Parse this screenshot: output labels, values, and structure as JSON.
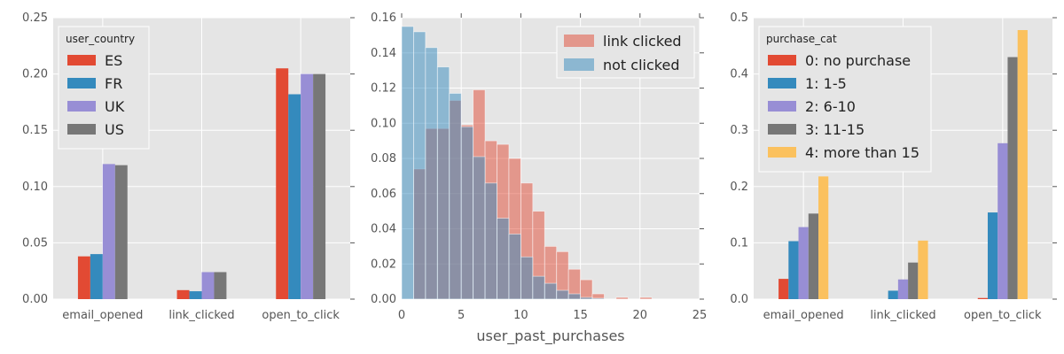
{
  "chart_data": [
    {
      "type": "bar",
      "categories": [
        "email_opened",
        "link_clicked",
        "open_to_click"
      ],
      "ylim": [
        0,
        0.25
      ],
      "yticks": [
        "0.00",
        "0.05",
        "0.10",
        "0.15",
        "0.20",
        "0.25"
      ],
      "ytick_values": [
        0,
        0.05,
        0.1,
        0.15,
        0.2,
        0.25
      ],
      "grid": true,
      "legend_title": "user_country",
      "legend_location": "upper-left",
      "series": [
        {
          "name": "ES",
          "color": "#E24A33",
          "values": [
            0.038,
            0.008,
            0.205
          ]
        },
        {
          "name": "FR",
          "color": "#348ABD",
          "values": [
            0.04,
            0.007,
            0.182
          ]
        },
        {
          "name": "UK",
          "color": "#988ED5",
          "values": [
            0.12,
            0.024,
            0.2
          ]
        },
        {
          "name": "US",
          "color": "#777777",
          "values": [
            0.119,
            0.024,
            0.2
          ]
        }
      ]
    },
    {
      "type": "histogram",
      "xlabel": "user_past_purchases",
      "xlim": [
        0,
        25
      ],
      "ylim": [
        0,
        0.16
      ],
      "xticks": [
        "0",
        "5",
        "10",
        "15",
        "20",
        "25"
      ],
      "xtick_values": [
        0,
        5,
        10,
        15,
        20,
        25
      ],
      "yticks": [
        "0.00",
        "0.02",
        "0.04",
        "0.06",
        "0.08",
        "0.10",
        "0.12",
        "0.14",
        "0.16"
      ],
      "ytick_values": [
        0,
        0.02,
        0.04,
        0.06,
        0.08,
        0.1,
        0.12,
        0.14,
        0.16
      ],
      "grid": true,
      "legend_location": "upper-right",
      "series": [
        {
          "name": "link clicked",
          "color": "#E24A33",
          "bins": [
            [
              1,
              2
            ],
            [
              2,
              3
            ],
            [
              3,
              4
            ],
            [
              4,
              5
            ],
            [
              5,
              6
            ],
            [
              6,
              7
            ],
            [
              7,
              8
            ],
            [
              8,
              9
            ],
            [
              9,
              10
            ],
            [
              10,
              11
            ],
            [
              11,
              12
            ],
            [
              12,
              13
            ],
            [
              13,
              14
            ],
            [
              14,
              15
            ],
            [
              15,
              16
            ],
            [
              16,
              17
            ],
            [
              18,
              19
            ],
            [
              20,
              21
            ]
          ],
          "values": [
            0.074,
            0.097,
            0.097,
            0.113,
            0.099,
            0.119,
            0.09,
            0.088,
            0.08,
            0.066,
            0.05,
            0.03,
            0.027,
            0.017,
            0.011,
            0.003,
            0.001,
            0.001
          ]
        },
        {
          "name": "not clicked",
          "color": "#348ABD",
          "bins": [
            [
              0,
              1
            ],
            [
              1,
              2
            ],
            [
              2,
              3
            ],
            [
              3,
              4
            ],
            [
              4,
              5
            ],
            [
              5,
              6
            ],
            [
              6,
              7
            ],
            [
              7,
              8
            ],
            [
              8,
              9
            ],
            [
              9,
              10
            ],
            [
              10,
              11
            ],
            [
              11,
              12
            ],
            [
              12,
              13
            ],
            [
              13,
              14
            ],
            [
              14,
              15
            ],
            [
              15,
              16
            ],
            [
              16,
              17
            ]
          ],
          "values": [
            0.155,
            0.152,
            0.143,
            0.132,
            0.117,
            0.098,
            0.081,
            0.066,
            0.046,
            0.037,
            0.024,
            0.013,
            0.009,
            0.005,
            0.003,
            0.001,
            0.0005
          ]
        }
      ]
    },
    {
      "type": "bar",
      "categories": [
        "email_opened",
        "link_clicked",
        "open_to_click"
      ],
      "ylim": [
        0,
        0.5
      ],
      "yticks": [
        "0.0",
        "0.1",
        "0.2",
        "0.3",
        "0.4",
        "0.5"
      ],
      "ytick_values": [
        0,
        0.1,
        0.2,
        0.3,
        0.4,
        0.5
      ],
      "grid": true,
      "legend_title": "purchase_cat",
      "legend_location": "upper-left",
      "series": [
        {
          "name": "0: no purchase",
          "color": "#E24A33",
          "values": [
            0.036,
            0.0,
            0.002
          ]
        },
        {
          "name": "1: 1-5",
          "color": "#348ABD",
          "values": [
            0.103,
            0.015,
            0.154
          ]
        },
        {
          "name": "2: 6-10",
          "color": "#988ED5",
          "values": [
            0.128,
            0.035,
            0.277
          ]
        },
        {
          "name": "3: 11-15",
          "color": "#777777",
          "values": [
            0.152,
            0.065,
            0.43
          ]
        },
        {
          "name": "4: more than 15",
          "color": "#FBC15E",
          "values": [
            0.218,
            0.104,
            0.478
          ]
        }
      ]
    }
  ]
}
